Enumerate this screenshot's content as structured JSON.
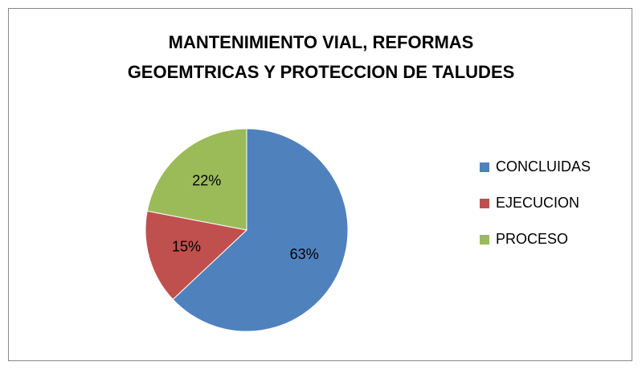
{
  "chart_data": {
    "type": "pie",
    "title": "MANTENIMIENTO VIAL, REFORMAS\nGEOEMTRICAS Y PROTECCION DE TALUDES",
    "categories": [
      "CONCLUIDAS",
      "EJECUCION",
      "PROCESO"
    ],
    "values": [
      63,
      15,
      22
    ],
    "value_labels": [
      "63%",
      "15%",
      "22%"
    ],
    "colors": [
      "#4f81bd",
      "#c0504d",
      "#9bbb59"
    ],
    "legend": "right"
  }
}
